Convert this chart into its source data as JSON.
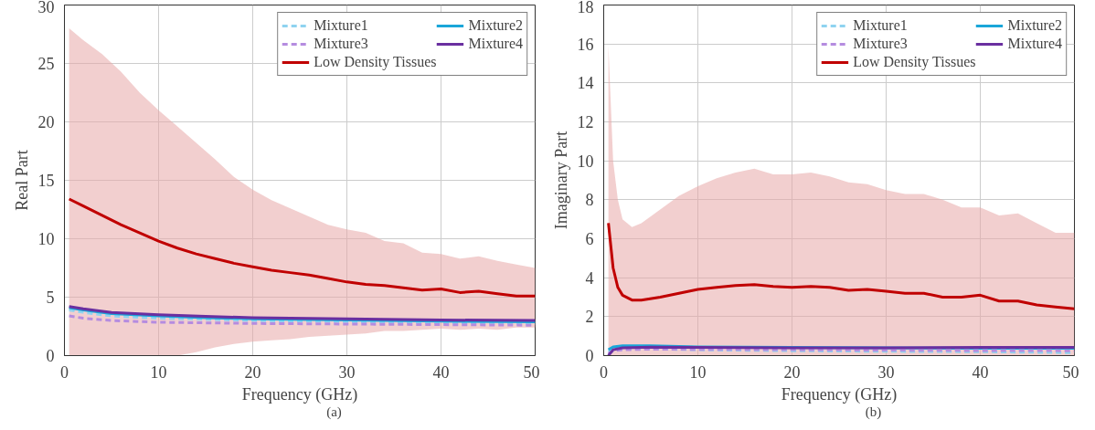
{
  "chart_data": [
    {
      "type": "line",
      "xlabel": "Frequency (GHz)",
      "ylabel": "Real Part",
      "xlim": [
        0,
        50
      ],
      "ylim": [
        0,
        30
      ],
      "xticks": [
        0,
        10,
        20,
        30,
        40,
        50
      ],
      "yticks": [
        0,
        5,
        10,
        15,
        20,
        25,
        30
      ],
      "grid": true,
      "legend": "top right",
      "marker": "none",
      "annotations": [
        "(a)"
      ],
      "series": [
        {
          "name": "Mixture1",
          "color": "#8fd3f0",
          "line_style": "dashed",
          "x": [
            0.5,
            2,
            5,
            10,
            15,
            20,
            30,
            40,
            50
          ],
          "values": [
            3.9,
            3.7,
            3.4,
            3.2,
            3.1,
            3.0,
            2.9,
            2.8,
            2.75
          ]
        },
        {
          "name": "Mixture2",
          "color": "#1aa6d9",
          "line_style": "solid",
          "x": [
            0.5,
            2,
            5,
            10,
            15,
            20,
            30,
            40,
            50
          ],
          "values": [
            4.1,
            3.9,
            3.6,
            3.4,
            3.25,
            3.15,
            3.05,
            2.95,
            2.9
          ]
        },
        {
          "name": "Mixture3",
          "color": "#b58ce0",
          "line_style": "dashed",
          "x": [
            0.5,
            2,
            5,
            10,
            15,
            20,
            30,
            40,
            50
          ],
          "values": [
            3.4,
            3.2,
            3.0,
            2.85,
            2.8,
            2.75,
            2.7,
            2.65,
            2.6
          ]
        },
        {
          "name": "Mixture4",
          "color": "#6a2fa0",
          "line_style": "solid",
          "x": [
            0.5,
            2,
            5,
            10,
            15,
            20,
            30,
            40,
            50
          ],
          "values": [
            4.2,
            4.0,
            3.7,
            3.5,
            3.35,
            3.25,
            3.15,
            3.05,
            3.0
          ]
        },
        {
          "name": "Low Density Tissues",
          "color": "#c00000",
          "line_style": "solid",
          "x": [
            0.5,
            2,
            4,
            6,
            8,
            10,
            12,
            14,
            16,
            18,
            20,
            22,
            24,
            26,
            28,
            30,
            32,
            34,
            36,
            38,
            40,
            42,
            44,
            46,
            48,
            50
          ],
          "values": [
            13.4,
            12.8,
            12.0,
            11.2,
            10.5,
            9.8,
            9.2,
            8.7,
            8.3,
            7.9,
            7.6,
            7.3,
            7.1,
            6.9,
            6.6,
            6.3,
            6.1,
            6.0,
            5.8,
            5.6,
            5.7,
            5.4,
            5.5,
            5.3,
            5.1,
            5.1
          ],
          "upper": [
            28.0,
            27.0,
            25.8,
            24.3,
            22.5,
            21.0,
            19.6,
            18.2,
            16.8,
            15.3,
            14.2,
            13.3,
            12.6,
            11.9,
            11.2,
            10.8,
            10.5,
            9.8,
            9.6,
            8.8,
            8.7,
            8.3,
            8.5,
            8.1,
            7.8,
            7.5
          ],
          "lower": [
            0,
            0,
            0,
            0,
            0,
            0,
            0,
            0.3,
            0.7,
            1.0,
            1.2,
            1.3,
            1.4,
            1.6,
            1.7,
            1.8,
            1.9,
            2.1,
            2.1,
            2.2,
            2.3,
            2.2,
            2.3,
            2.2,
            2.4,
            2.4
          ]
        }
      ]
    },
    {
      "type": "line",
      "xlabel": "Frequency (GHz)",
      "ylabel": "Imaginary Part",
      "xlim": [
        0,
        50
      ],
      "ylim": [
        0,
        18
      ],
      "xticks": [
        0,
        10,
        20,
        30,
        40,
        50
      ],
      "yticks": [
        0,
        2,
        4,
        6,
        8,
        10,
        12,
        14,
        16,
        18
      ],
      "grid": true,
      "legend": "top right",
      "marker": "none",
      "annotations": [
        "(b)"
      ],
      "series": [
        {
          "name": "Mixture1",
          "color": "#8fd3f0",
          "line_style": "dashed",
          "x": [
            0.5,
            1,
            2,
            5,
            10,
            20,
            30,
            40,
            50
          ],
          "values": [
            0.2,
            0.3,
            0.35,
            0.35,
            0.3,
            0.25,
            0.22,
            0.2,
            0.15
          ]
        },
        {
          "name": "Mixture2",
          "color": "#1aa6d9",
          "line_style": "solid",
          "x": [
            0.5,
            1,
            2,
            5,
            10,
            20,
            30,
            40,
            50
          ],
          "values": [
            0.3,
            0.45,
            0.5,
            0.5,
            0.45,
            0.42,
            0.4,
            0.38,
            0.38
          ]
        },
        {
          "name": "Mixture3",
          "color": "#b58ce0",
          "line_style": "dashed",
          "x": [
            0.5,
            1,
            2,
            5,
            10,
            20,
            30,
            40,
            50
          ],
          "values": [
            0.1,
            0.25,
            0.3,
            0.33,
            0.32,
            0.3,
            0.28,
            0.26,
            0.25
          ]
        },
        {
          "name": "Mixture4",
          "color": "#6a2fa0",
          "line_style": "solid",
          "x": [
            0.5,
            1,
            2,
            5,
            10,
            20,
            30,
            40,
            50
          ],
          "values": [
            0.0,
            0.3,
            0.4,
            0.43,
            0.42,
            0.4,
            0.4,
            0.42,
            0.42
          ]
        },
        {
          "name": "Low Density Tissues",
          "color": "#c00000",
          "line_style": "solid",
          "x": [
            0.5,
            1,
            1.5,
            2,
            3,
            4,
            6,
            8,
            10,
            12,
            14,
            16,
            18,
            20,
            22,
            24,
            26,
            28,
            30,
            32,
            34,
            36,
            38,
            40,
            42,
            44,
            46,
            48,
            50
          ],
          "values": [
            6.8,
            4.5,
            3.5,
            3.1,
            2.85,
            2.85,
            3.0,
            3.2,
            3.4,
            3.5,
            3.6,
            3.65,
            3.55,
            3.5,
            3.55,
            3.5,
            3.35,
            3.4,
            3.3,
            3.2,
            3.2,
            3.0,
            3.0,
            3.1,
            2.8,
            2.8,
            2.6,
            2.5,
            2.4
          ],
          "upper": [
            15.9,
            10.0,
            8.0,
            7.0,
            6.6,
            6.8,
            7.5,
            8.2,
            8.7,
            9.1,
            9.4,
            9.6,
            9.3,
            9.3,
            9.4,
            9.2,
            8.9,
            8.8,
            8.5,
            8.3,
            8.3,
            8.0,
            7.6,
            7.6,
            7.2,
            7.3,
            6.8,
            6.3,
            6.3
          ],
          "lower": [
            0,
            0,
            0,
            0,
            0,
            0,
            0,
            0,
            0,
            0,
            0,
            0,
            0,
            0,
            0,
            0,
            0,
            0,
            0,
            0,
            0,
            0,
            0,
            0,
            0,
            0,
            0,
            0,
            0
          ]
        }
      ]
    }
  ]
}
